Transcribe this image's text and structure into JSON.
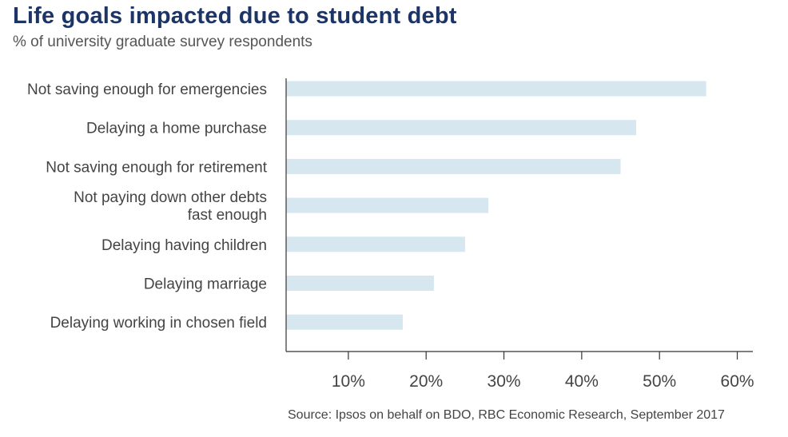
{
  "title": "Life goals impacted due to student debt",
  "subtitle": "% of university graduate survey respondents",
  "source": "Source: Ipsos on behalf on BDO, RBC Economic Research, September 2017",
  "colors": {
    "title": "#1c3466",
    "bar": "#d6e7ef",
    "axis": "#333333",
    "text": "#444444"
  },
  "chart_data": {
    "type": "bar",
    "orientation": "horizontal",
    "title": "Life goals impacted due to student debt",
    "subtitle": "% of university graduate survey respondents",
    "categories": [
      [
        "Not saving enough for emergencies"
      ],
      [
        "Delaying a home purchase"
      ],
      [
        "Not saving enough for retirement"
      ],
      [
        "Not paying down other debts",
        "fast enough"
      ],
      [
        "Delaying having children"
      ],
      [
        "Delaying marriage"
      ],
      [
        "Delaying working in chosen field"
      ]
    ],
    "values": [
      56,
      47,
      45,
      28,
      25,
      21,
      17
    ],
    "xlim": [
      2,
      62
    ],
    "xticks": [
      10,
      20,
      30,
      40,
      50,
      60
    ],
    "xtick_labels": [
      "10%",
      "20%",
      "30%",
      "40%",
      "50%",
      "60%"
    ],
    "grid": false,
    "legend": "none"
  }
}
